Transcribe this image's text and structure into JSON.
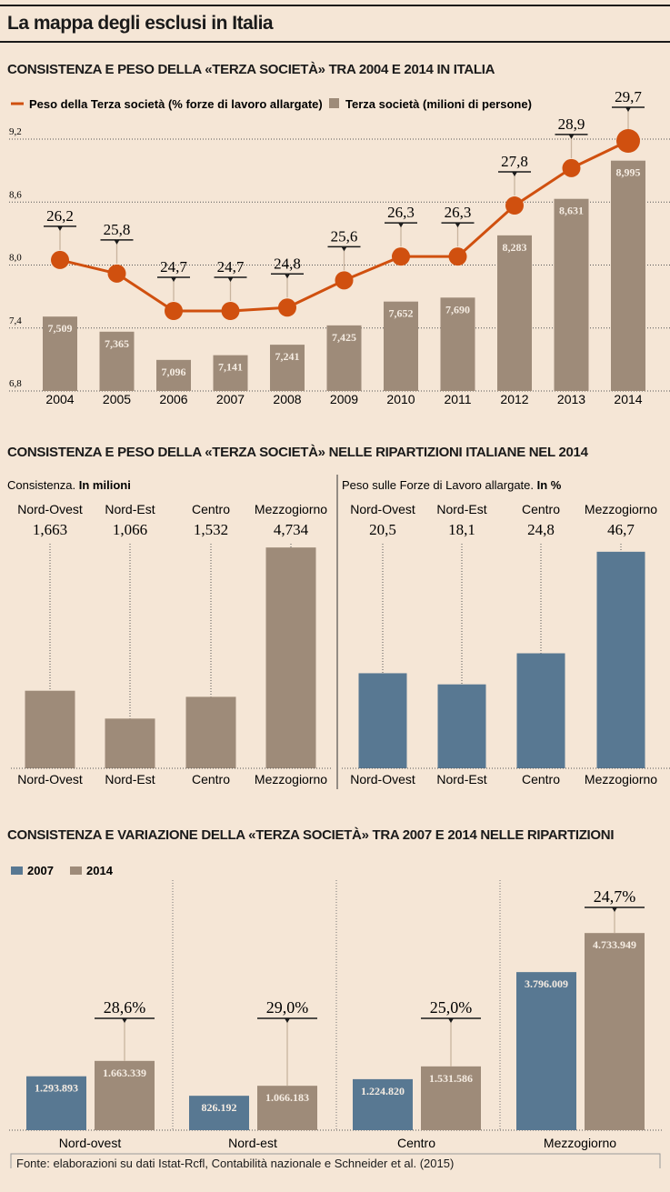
{
  "title": "La mappa degli esclusi in Italia",
  "colors": {
    "orange": "#d0500f",
    "taupe": "#9e8b79",
    "blue": "#587892",
    "bg": "#f5e6d6"
  },
  "source": "Fonte: elaborazioni su dati Istat-Rcfl, Contabilità nazionale e Schneider et al. (2015)",
  "chart_data": [
    {
      "type": "bar+line",
      "title": "CONSISTENZA E PESO DELLA «TERZA SOCIETÀ» TRA 2004 E 2014 IN ITALIA",
      "categories": [
        "2004",
        "2005",
        "2006",
        "2007",
        "2008",
        "2009",
        "2010",
        "2011",
        "2012",
        "2013",
        "2014"
      ],
      "yticks": [
        "6,8",
        "7,4",
        "8,0",
        "8,6",
        "9,2"
      ],
      "ylim": [
        6.8,
        9.2
      ],
      "grid": true,
      "legend": "top-left",
      "series": [
        {
          "name": "Peso della Terza società (% forze di lavoro allargate)",
          "type": "line",
          "values": [
            26.2,
            25.8,
            24.7,
            24.7,
            24.8,
            25.6,
            26.3,
            26.3,
            27.8,
            28.9,
            29.7
          ],
          "labels": [
            "26,2",
            "25,8",
            "24,7",
            "24,7",
            "24,8",
            "25,6",
            "26,3",
            "26,3",
            "27,8",
            "28,9",
            "29,7"
          ]
        },
        {
          "name": "Terza società (milioni di persone)",
          "type": "bar",
          "values": [
            7.509,
            7.365,
            7.096,
            7.141,
            7.241,
            7.425,
            7.652,
            7.69,
            8.283,
            8.631,
            8.995
          ],
          "labels": [
            "7,509",
            "7,365",
            "7,096",
            "7,141",
            "7,241",
            "7,425",
            "7,652",
            "7,690",
            "8,283",
            "8,631",
            "8,995"
          ]
        }
      ]
    },
    {
      "type": "bar",
      "title": "CONSISTENZA E PESO DELLA «TERZA SOCIETÀ» NELLE RIPARTIZIONI ITALIANE NEL 2014",
      "panels": [
        {
          "subtitle": "Consistenza.",
          "subtitle_bold": "In milioni",
          "categories": [
            "Nord-Ovest",
            "Nord-Est",
            "Centro",
            "Mezzogiorno"
          ],
          "values": [
            1.663,
            1.066,
            1.532,
            4.734
          ],
          "labels": [
            "1,663",
            "1,066",
            "1,532",
            "4,734"
          ]
        },
        {
          "subtitle": "Peso sulle Forze di Lavoro allargate.",
          "subtitle_bold": "In %",
          "categories": [
            "Nord-Ovest",
            "Nord-Est",
            "Centro",
            "Mezzogiorno"
          ],
          "values": [
            20.5,
            18.1,
            24.8,
            46.7
          ],
          "labels": [
            "20,5",
            "18,1",
            "24,8",
            "46,7"
          ]
        }
      ]
    },
    {
      "type": "bar",
      "title": "CONSISTENZA E VARIAZIONE DELLA «TERZA SOCIETÀ» TRA 2007 E 2014 NELLE RIPARTIZIONI",
      "categories": [
        "Nord-ovest",
        "Nord-est",
        "Centro",
        "Mezzogiorno"
      ],
      "legend": "top-left",
      "series": [
        {
          "name": "2007",
          "values": [
            1293893,
            826192,
            1224820,
            3796009
          ],
          "labels": [
            "1.293.893",
            "826.192",
            "1.224.820",
            "3.796.009"
          ]
        },
        {
          "name": "2014",
          "values": [
            1663339,
            1066183,
            1531586,
            4733949
          ],
          "labels": [
            "1.663.339",
            "1.066.183",
            "1.531.586",
            "4.733.949"
          ]
        }
      ],
      "variation": [
        "28,6%",
        "29,0%",
        "25,0%",
        "24,7%"
      ]
    }
  ]
}
